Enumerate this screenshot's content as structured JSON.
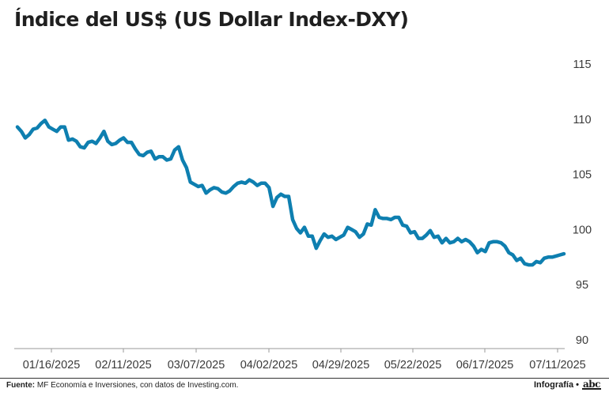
{
  "chart_data": {
    "type": "line",
    "title": "Índice del US$ (US Dollar Index-DXY)",
    "ylim": [
      90,
      115
    ],
    "yticks": [
      115,
      110,
      105,
      100,
      95,
      90
    ],
    "x_tick_labels": [
      "01/16/2025",
      "02/11/2025",
      "03/07/2025",
      "04/02/2025",
      "04/29/2025",
      "05/22/2025",
      "06/17/2025",
      "07/11/2025"
    ],
    "grid": false,
    "series": [
      {
        "color": "#0e7fb0",
        "values": [
          109.3,
          108.9,
          108.3,
          108.6,
          109.1,
          109.2,
          109.6,
          109.9,
          109.3,
          109.1,
          108.9,
          109.3,
          109.3,
          108.1,
          108.2,
          108.0,
          107.5,
          107.4,
          107.9,
          108.0,
          107.8,
          108.3,
          108.9,
          108.0,
          107.7,
          107.8,
          108.1,
          108.3,
          107.9,
          107.9,
          107.3,
          106.8,
          106.7,
          107.0,
          107.1,
          106.4,
          106.6,
          106.6,
          106.3,
          106.4,
          107.2,
          107.5,
          106.3,
          105.6,
          104.3,
          104.1,
          103.9,
          104.0,
          103.3,
          103.6,
          103.8,
          103.7,
          103.4,
          103.3,
          103.5,
          103.9,
          104.2,
          104.3,
          104.2,
          104.5,
          104.3,
          104.0,
          104.2,
          104.2,
          103.8,
          102.1,
          102.9,
          103.2,
          103.0,
          103.0,
          100.9,
          100.1,
          99.7,
          100.2,
          99.4,
          99.4,
          98.3,
          99.0,
          99.6,
          99.3,
          99.4,
          99.1,
          99.3,
          99.5,
          100.2,
          100.0,
          99.8,
          99.3,
          99.6,
          100.5,
          100.4,
          101.8,
          101.1,
          101.0,
          101.0,
          100.9,
          101.1,
          101.1,
          100.4,
          100.3,
          99.7,
          99.8,
          99.2,
          99.2,
          99.5,
          99.9,
          99.3,
          99.4,
          98.8,
          99.2,
          98.8,
          98.9,
          99.2,
          98.9,
          99.1,
          98.9,
          98.5,
          97.9,
          98.2,
          98.0,
          98.8,
          98.9,
          98.9,
          98.8,
          98.5,
          97.9,
          97.7,
          97.2,
          97.4,
          96.9,
          96.8,
          96.8,
          97.1,
          97.0,
          97.4,
          97.5,
          97.5,
          97.6,
          97.7,
          97.8
        ]
      }
    ]
  },
  "footer": {
    "source_label": "Fuente:",
    "source_text": " MF Economía e Inversiones, con datos de Investing.com.",
    "credit": "Infografía •",
    "logo": "abc"
  }
}
